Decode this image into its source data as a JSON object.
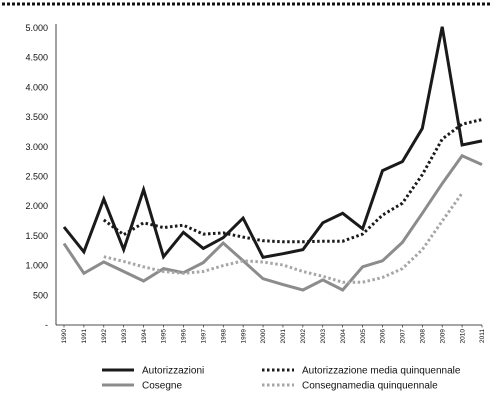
{
  "chart_data": {
    "type": "line",
    "x": [
      "1990",
      "1991",
      "1992",
      "1993",
      "1994",
      "1995",
      "1996",
      "1997",
      "1998",
      "1999",
      "2000",
      "2001",
      "2002",
      "2003",
      "2004",
      "2005",
      "2006",
      "2007",
      "2008",
      "2009",
      "2010",
      "2011"
    ],
    "y_ticks": [
      "-",
      "500",
      "1.000",
      "1.500",
      "2.000",
      "2.500",
      "3.000",
      "3.500",
      "4.000",
      "4.500",
      "5.000"
    ],
    "ylim": [
      0,
      5000
    ],
    "grid": false,
    "legend_position": "bottom",
    "series": [
      {
        "name": "Autorizzazioni",
        "style": "solid",
        "color": "#1a1a1a",
        "values": [
          1650,
          1230,
          2120,
          1270,
          2280,
          1150,
          1560,
          1290,
          1470,
          1800,
          1140,
          1200,
          1270,
          1720,
          1880,
          1620,
          2600,
          2750,
          3310,
          5020,
          3030,
          3100
        ]
      },
      {
        "name": "Autorizzazione media quinquennale",
        "style": "dotted",
        "color": "#1a1a1a",
        "values": [
          null,
          null,
          1770,
          1520,
          1720,
          1640,
          1680,
          1530,
          1550,
          1480,
          1420,
          1400,
          1400,
          1410,
          1410,
          1530,
          1850,
          2050,
          2530,
          3130,
          3380,
          3460
        ]
      },
      {
        "name": "Cosegne",
        "style": "solid",
        "color": "#8c8c8c",
        "values": [
          1370,
          870,
          1060,
          900,
          740,
          950,
          880,
          1050,
          1380,
          1080,
          780,
          680,
          590,
          760,
          590,
          980,
          1080,
          1390,
          1880,
          2380,
          2850,
          2700
        ]
      },
      {
        "name": "Consegnamedia quinquennale",
        "style": "dotted",
        "color": "#a6a6a6",
        "values": [
          null,
          null,
          1150,
          1070,
          980,
          900,
          870,
          900,
          1000,
          1080,
          1060,
          1010,
          900,
          820,
          720,
          720,
          800,
          950,
          1270,
          1750,
          2220,
          null
        ]
      }
    ]
  }
}
